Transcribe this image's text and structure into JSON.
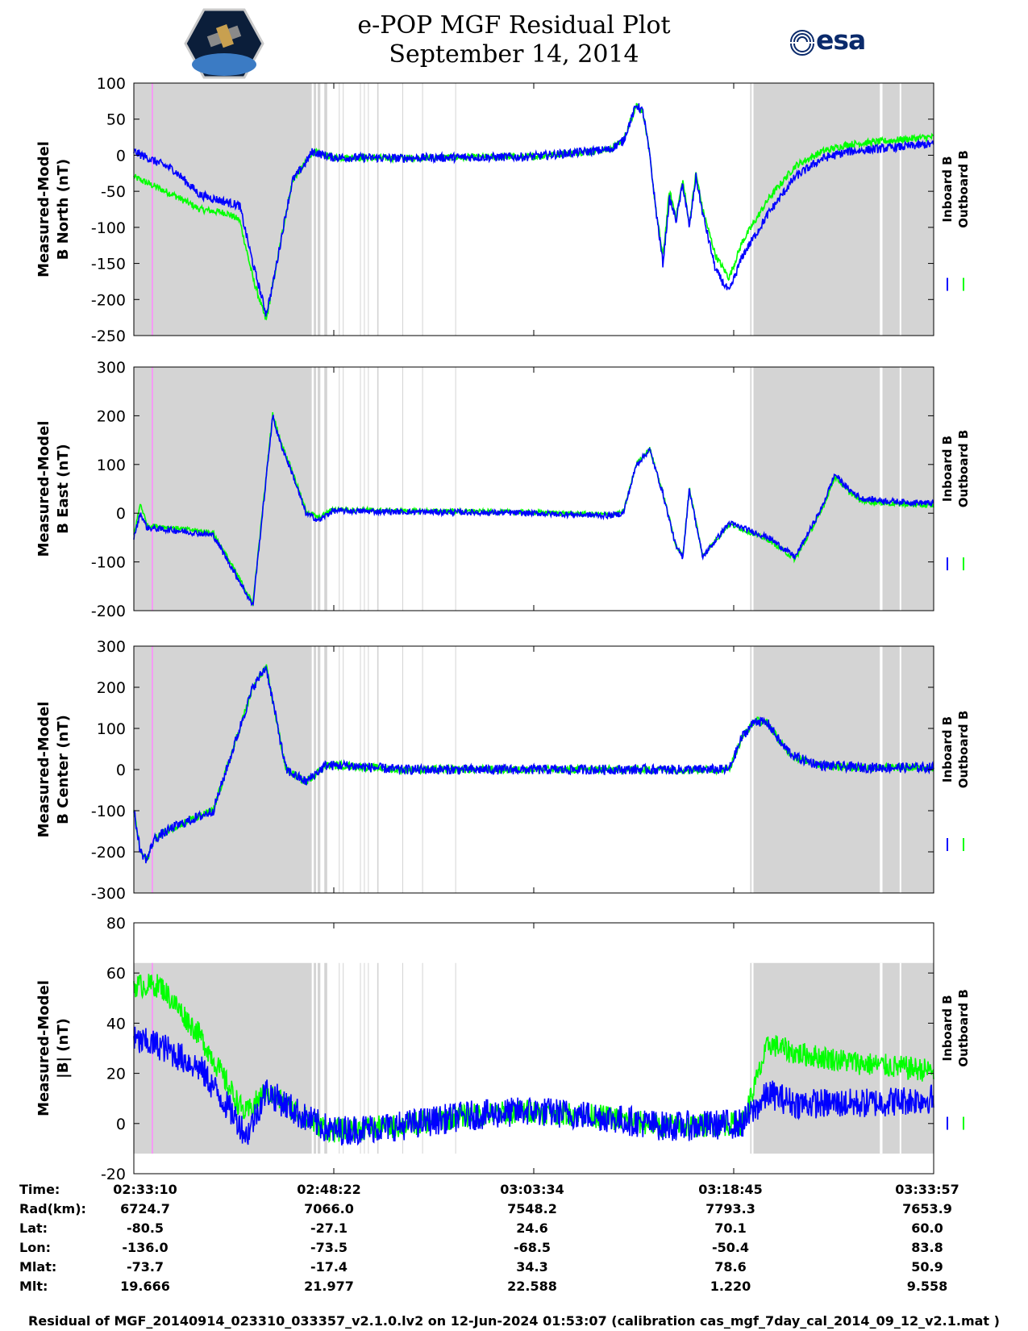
{
  "header": {
    "title_line1": "e-POP MGF Residual Plot",
    "title_line2": "September 14, 2014",
    "logo_left": "cassiope-mission-logo",
    "logo_right_text": "esa"
  },
  "colors": {
    "inboard": "#0000ff",
    "outboard": "#00ff00",
    "shade": "#d4d4d4",
    "marker": "#ff88ff"
  },
  "legend": {
    "inboard": "Inboard B",
    "outboard": "Outboard B"
  },
  "chart_data": [
    {
      "type": "line",
      "ylabel_line1": "Measured-Model",
      "ylabel_line2": "B North (nT)",
      "ylim": [
        -250,
        100
      ],
      "yticks": [
        -250,
        -200,
        -150,
        -100,
        -50,
        0,
        50,
        100
      ],
      "x_seconds": [
        0,
        300,
        500,
        700,
        800,
        900,
        1000,
        1050,
        1150,
        1200,
        1300,
        1350,
        1500,
        2000,
        2500,
        3000,
        3600,
        3700,
        3800,
        3850,
        3900,
        3950,
        4000,
        4050,
        4100,
        4150,
        4200,
        4250,
        4300,
        4400,
        4500,
        4600,
        4800,
        5000,
        5200,
        5400,
        5700,
        6000,
        6047
      ],
      "series": [
        {
          "name": "Inboard B",
          "values": [
            5,
            -20,
            -55,
            -65,
            -70,
            -150,
            -220,
            -180,
            -80,
            -35,
            -10,
            5,
            -3,
            -4,
            -3,
            -2,
            8,
            20,
            70,
            60,
            0,
            -80,
            -150,
            -60,
            -90,
            -40,
            -100,
            -30,
            -80,
            -160,
            -190,
            -140,
            -80,
            -30,
            -5,
            5,
            10,
            15,
            15
          ]
        },
        {
          "name": "Outboard B",
          "values": [
            -30,
            -55,
            -75,
            -80,
            -90,
            -170,
            -230,
            -180,
            -80,
            -35,
            -10,
            5,
            -3,
            -4,
            -3,
            -2,
            8,
            20,
            70,
            60,
            0,
            -80,
            -140,
            -50,
            -85,
            -35,
            -95,
            -25,
            -75,
            -140,
            -170,
            -120,
            -60,
            -15,
            5,
            15,
            20,
            25,
            25
          ]
        }
      ]
    },
    {
      "type": "line",
      "ylabel_line1": "Measured-Model",
      "ylabel_line2": "B East (nT)",
      "ylim": [
        -200,
        300
      ],
      "yticks": [
        -200,
        -100,
        0,
        100,
        200,
        300
      ],
      "x_seconds": [
        0,
        50,
        100,
        300,
        600,
        800,
        900,
        1050,
        1100,
        1200,
        1300,
        1400,
        1500,
        2000,
        2500,
        3000,
        3600,
        3700,
        3800,
        3900,
        4000,
        4100,
        4150,
        4200,
        4300,
        4500,
        4800,
        5000,
        5200,
        5300,
        5400,
        5500,
        5700,
        6047
      ],
      "series": [
        {
          "name": "Inboard B",
          "values": [
            -50,
            0,
            -30,
            -35,
            -45,
            -140,
            -190,
            200,
            150,
            80,
            0,
            -15,
            5,
            3,
            2,
            0,
            -5,
            0,
            100,
            130,
            40,
            -70,
            -90,
            50,
            -90,
            -20,
            -50,
            -90,
            10,
            80,
            50,
            30,
            25,
            20
          ]
        },
        {
          "name": "Outboard B",
          "values": [
            -45,
            20,
            -25,
            -30,
            -40,
            -135,
            -185,
            205,
            155,
            85,
            5,
            -10,
            8,
            5,
            4,
            2,
            -3,
            2,
            102,
            132,
            42,
            -68,
            -88,
            52,
            -88,
            -22,
            -55,
            -95,
            5,
            75,
            45,
            25,
            20,
            15
          ]
        }
      ]
    },
    {
      "type": "line",
      "ylabel_line1": "Measured-Model",
      "ylabel_line2": "B Center (nT)",
      "ylim": [
        -300,
        300
      ],
      "yticks": [
        -300,
        -200,
        -100,
        0,
        100,
        200,
        300
      ],
      "x_seconds": [
        0,
        50,
        100,
        150,
        300,
        600,
        900,
        1000,
        1150,
        1300,
        1450,
        1600,
        2000,
        2500,
        3000,
        3500,
        4300,
        4500,
        4600,
        4700,
        4800,
        4900,
        5000,
        5200,
        5500,
        6047
      ],
      "series": [
        {
          "name": "Inboard B",
          "values": [
            -100,
            -200,
            -220,
            -170,
            -140,
            -100,
            200,
            250,
            0,
            -30,
            10,
            10,
            0,
            0,
            0,
            0,
            0,
            0,
            80,
            120,
            110,
            60,
            30,
            10,
            5,
            5
          ]
        },
        {
          "name": "Outboard B",
          "values": [
            -100,
            -200,
            -220,
            -170,
            -140,
            -100,
            200,
            250,
            0,
            -30,
            10,
            10,
            0,
            0,
            0,
            0,
            0,
            0,
            80,
            120,
            110,
            60,
            30,
            10,
            5,
            5
          ]
        }
      ]
    },
    {
      "type": "line",
      "ylabel_line1": "Measured-Model",
      "ylabel_line2": "|B| (nT)",
      "ylim": [
        -20,
        80
      ],
      "yticks": [
        -20,
        0,
        20,
        40,
        60,
        80
      ],
      "x_seconds": [
        0,
        200,
        500,
        800,
        850,
        1000,
        1300,
        1500,
        2000,
        2500,
        3000,
        3500,
        4000,
        4200,
        4600,
        4800,
        5000,
        5500,
        6047
      ],
      "series": [
        {
          "name": "Inboard B",
          "values": [
            33,
            31,
            22,
            0,
            -5,
            13,
            2,
            -3,
            -1,
            3,
            5,
            3,
            -1,
            -1,
            0,
            12,
            8,
            8,
            10
          ]
        },
        {
          "name": "Outboard B",
          "values": [
            55,
            55,
            35,
            7,
            4,
            13,
            2,
            -3,
            -1,
            3,
            5,
            3,
            -1,
            -1,
            0,
            32,
            28,
            24,
            21
          ]
        }
      ]
    }
  ],
  "shading_seconds": [
    [
      0,
      1345
    ],
    [
      1360,
      1378
    ],
    [
      1390,
      1410
    ],
    [
      1440,
      1462
    ],
    [
      1550,
      1555
    ],
    [
      1580,
      1585
    ],
    [
      1710,
      1715
    ],
    [
      1740,
      1745
    ],
    [
      1770,
      1775
    ],
    [
      1840,
      1850
    ],
    [
      2030,
      2035
    ],
    [
      2180,
      2185
    ],
    [
      2430,
      2436
    ],
    [
      4660,
      6047
    ]
  ],
  "clear_gaps_seconds": [
    [
      4670,
      4685
    ],
    [
      5640,
      5660
    ],
    [
      5790,
      5800
    ]
  ],
  "time_axis": {
    "labels": [
      "02:33:10",
      "02:48:22",
      "03:03:34",
      "03:18:45",
      "03:33:57"
    ]
  },
  "ephemeris": {
    "rows": [
      {
        "label": "Time:",
        "values": [
          "02:33:10",
          "02:48:22",
          "03:03:34",
          "03:18:45",
          "03:33:57"
        ]
      },
      {
        "label": "Rad(km):",
        "values": [
          "6724.7",
          "7066.0",
          "7548.2",
          "7793.3",
          "7653.9"
        ]
      },
      {
        "label": "Lat:",
        "values": [
          "-80.5",
          "-27.1",
          "24.6",
          "70.1",
          "60.0"
        ]
      },
      {
        "label": "Lon:",
        "values": [
          "-136.0",
          "-73.5",
          "-68.5",
          "-50.4",
          "83.8"
        ]
      },
      {
        "label": "Mlat:",
        "values": [
          "-73.7",
          "-17.4",
          "34.3",
          "78.6",
          "50.9"
        ]
      },
      {
        "label": "Mlt:",
        "values": [
          "19.666",
          "21.977",
          "22.588",
          "1.220",
          "9.558"
        ]
      }
    ]
  },
  "footer": "Residual of MGF_20140914_023310_033357_v2.1.0.lv2 on 12-Jun-2024 01:53:07 (calibration cas_mgf_7day_cal_2014_09_12_v2.1.mat )"
}
